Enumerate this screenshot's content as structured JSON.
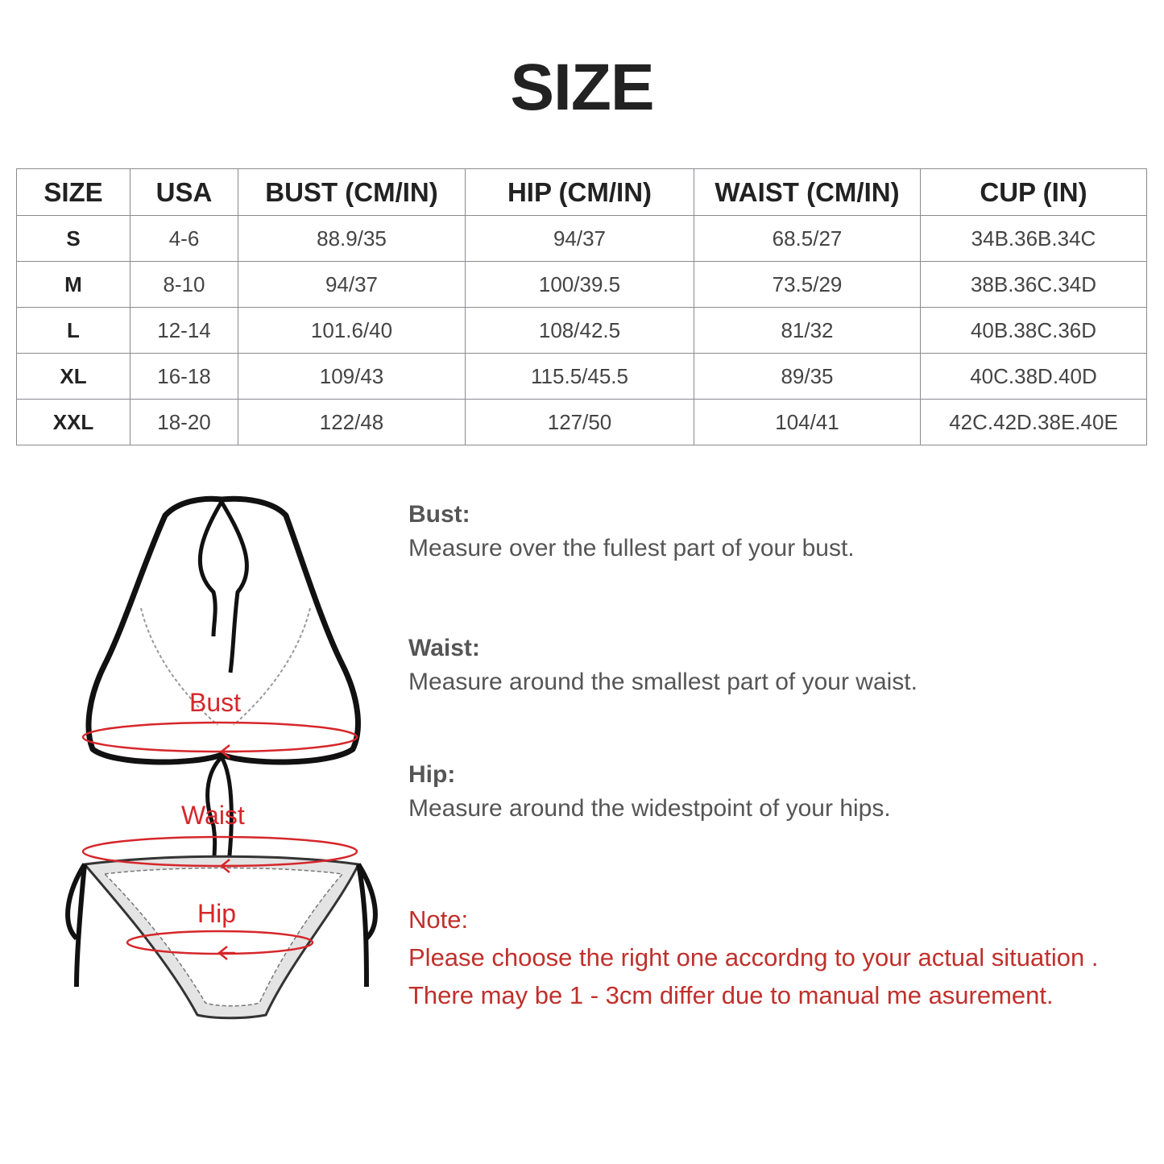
{
  "title": "SIZE",
  "table": {
    "headers": [
      "SIZE",
      "USA",
      "BUST (CM/IN)",
      "HIP (CM/IN)",
      "WAIST (CM/IN)",
      "CUP (IN)"
    ],
    "rows": [
      [
        "S",
        "4-6",
        "88.9/35",
        "94/37",
        "68.5/27",
        "34B.36B.34C"
      ],
      [
        "M",
        "8-10",
        "94/37",
        "100/39.5",
        "73.5/29",
        "38B.36C.34D"
      ],
      [
        "L",
        "12-14",
        "101.6/40",
        "108/42.5",
        "81/32",
        "40B.38C.36D"
      ],
      [
        "XL",
        "16-18",
        "109/43",
        "115.5/45.5",
        "89/35",
        "40C.38D.40D"
      ],
      [
        "XXL",
        "18-20",
        "122/48",
        "127/50",
        "104/41",
        "42C.42D.38E.40E"
      ]
    ]
  },
  "illustration": {
    "labels": {
      "bust": "Bust",
      "waist": "Waist",
      "hip": "Hip"
    },
    "marker_color": "#d6262a"
  },
  "measurements": [
    {
      "heading": "Bust:",
      "text": "Measure over the fullest part of your bust."
    },
    {
      "heading": "Waist:",
      "text": "Measure around the smallest part of your waist."
    },
    {
      "heading": "Hip:",
      "text": "Measure around the widestpoint of your hips."
    }
  ],
  "note": {
    "heading": "Note:",
    "lines": [
      "Please choose the right one accordng to your actual situation .",
      "There may be 1 - 3cm differ due to manual me asurement."
    ],
    "color": "#c0302c"
  }
}
